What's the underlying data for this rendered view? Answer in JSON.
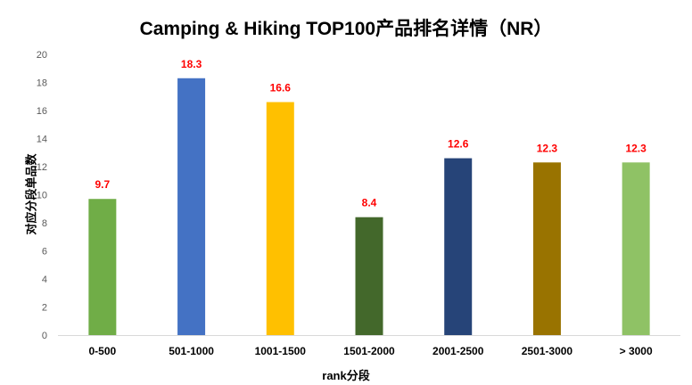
{
  "chart_data": {
    "type": "bar",
    "title": "Camping & Hiking TOP100产品排名详情（NR）",
    "xlabel": "rank分段",
    "ylabel": "对应分段单品数",
    "categories": [
      "0-500",
      "501-1000",
      "1001-1500",
      "1501-2000",
      "2001-2500",
      "2501-3000",
      "> 3000"
    ],
    "values": [
      9.7,
      18.3,
      16.6,
      8.4,
      12.6,
      12.3,
      12.3
    ],
    "colors": [
      "#70AD47",
      "#4472C4",
      "#FFC000",
      "#43682B",
      "#264478",
      "#997300",
      "#8FC265"
    ],
    "label_color": "#FF0000",
    "ylim": [
      0,
      20
    ],
    "yticks": [
      0,
      2,
      4,
      6,
      8,
      10,
      12,
      14,
      16,
      18,
      20
    ],
    "grid": false,
    "legend": "none"
  }
}
